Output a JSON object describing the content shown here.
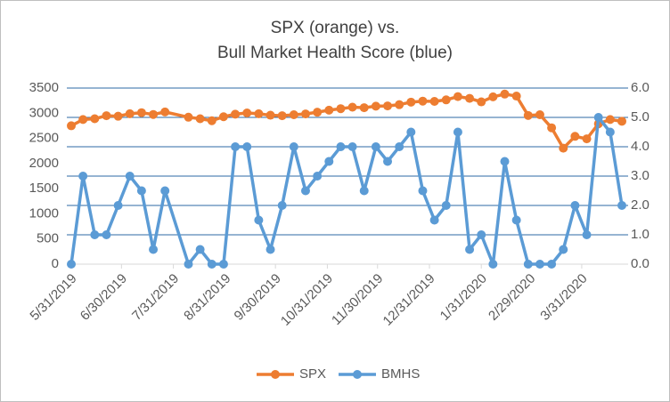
{
  "chart_data": {
    "type": "line",
    "title": [
      "SPX (orange) vs.",
      "Bull Market Health Score (blue)"
    ],
    "x": [
      "2019-05-31",
      "2019-06-07",
      "2019-06-14",
      "2019-06-21",
      "2019-06-28",
      "2019-07-05",
      "2019-07-12",
      "2019-07-19",
      "2019-07-26",
      "2019-08-09",
      "2019-08-16",
      "2019-08-23",
      "2019-08-30",
      "2019-09-06",
      "2019-09-13",
      "2019-09-20",
      "2019-09-27",
      "2019-10-04",
      "2019-10-11",
      "2019-10-18",
      "2019-10-25",
      "2019-11-01",
      "2019-11-08",
      "2019-11-15",
      "2019-11-22",
      "2019-11-29",
      "2019-12-06",
      "2019-12-13",
      "2019-12-20",
      "2019-12-27",
      "2020-01-03",
      "2020-01-10",
      "2020-01-17",
      "2020-01-24",
      "2020-01-31",
      "2020-02-07",
      "2020-02-14",
      "2020-02-21",
      "2020-02-28",
      "2020-03-06",
      "2020-03-13",
      "2020-03-20",
      "2020-03-27",
      "2020-04-03",
      "2020-04-10",
      "2020-04-17",
      "2020-04-24"
    ],
    "series": [
      {
        "name": "SPX",
        "color": "#ed7d31",
        "axis": "y",
        "values": [
          2750,
          2875,
          2890,
          2950,
          2940,
          2990,
          3010,
          2975,
          3025,
          2920,
          2890,
          2850,
          2930,
          2980,
          3005,
          2990,
          2960,
          2950,
          2970,
          2985,
          3020,
          3060,
          3090,
          3120,
          3110,
          3140,
          3145,
          3170,
          3220,
          3240,
          3235,
          3265,
          3330,
          3295,
          3225,
          3325,
          3380,
          3340,
          2955,
          2970,
          2710,
          2305,
          2540,
          2490,
          2790,
          2875,
          2840
        ]
      },
      {
        "name": "BMHS",
        "color": "#5b9bd5",
        "axis": "y2",
        "values": [
          0,
          3.0,
          1.0,
          1.0,
          2.0,
          3.0,
          2.5,
          0.5,
          2.5,
          0,
          0.5,
          0,
          0,
          4.0,
          4.0,
          1.5,
          0.5,
          2.0,
          4.0,
          2.5,
          3.0,
          3.5,
          4.0,
          4.0,
          2.5,
          4.0,
          3.5,
          4.0,
          4.5,
          2.5,
          1.5,
          2.0,
          4.5,
          0.5,
          1.0,
          0,
          3.5,
          1.5,
          0,
          0,
          0,
          0.5,
          2.0,
          1.0,
          5.0,
          4.5,
          2.0
        ]
      }
    ],
    "xlim": [
      "2019-05-31",
      "2020-04-24"
    ],
    "xticks": [
      {
        "value": "2019-05-31",
        "label": "5/31/2019"
      },
      {
        "value": "2019-06-30",
        "label": "6/30/2019"
      },
      {
        "value": "2019-07-31",
        "label": "7/31/2019"
      },
      {
        "value": "2019-08-31",
        "label": "8/31/2019"
      },
      {
        "value": "2019-09-30",
        "label": "9/30/2019"
      },
      {
        "value": "2019-10-31",
        "label": "10/31/2019"
      },
      {
        "value": "2019-11-30",
        "label": "11/30/2019"
      },
      {
        "value": "2019-12-31",
        "label": "12/31/2019"
      },
      {
        "value": "2020-01-31",
        "label": "1/31/2020"
      },
      {
        "value": "2020-02-29",
        "label": "2/29/2020"
      },
      {
        "value": "2020-03-31",
        "label": "3/31/2020"
      }
    ],
    "ylim": [
      0,
      3500
    ],
    "yticks": [
      0,
      500,
      1000,
      1500,
      2000,
      2500,
      3000,
      3500
    ],
    "y2lim": [
      0,
      6
    ],
    "y2ticks": [
      {
        "value": 0,
        "label": "0.0"
      },
      {
        "value": 1,
        "label": "1.0"
      },
      {
        "value": 2,
        "label": "2.0"
      },
      {
        "value": 3,
        "label": "3.0"
      },
      {
        "value": 4,
        "label": "4.0"
      },
      {
        "value": 5,
        "label": "5.0"
      },
      {
        "value": 6,
        "label": "6.0"
      }
    ],
    "grid": true,
    "legend": "bottom"
  }
}
